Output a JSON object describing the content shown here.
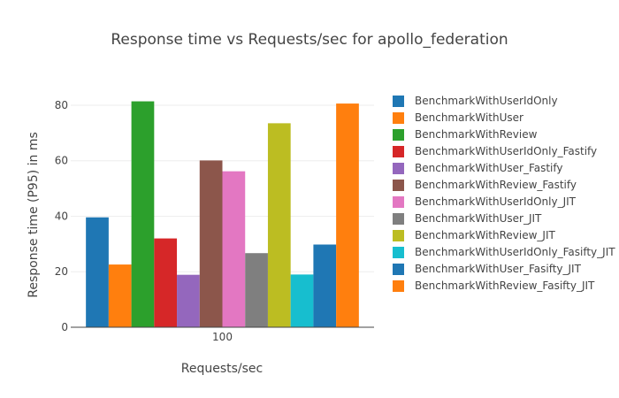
{
  "chart_data": {
    "type": "bar",
    "title": "Response time vs Requests/sec for apollo_federation",
    "xlabel": "Requests/sec",
    "ylabel": "Response time (P95) in ms",
    "categories": [
      "100"
    ],
    "ylim": [
      0,
      87
    ],
    "yticks": [
      0,
      20,
      40,
      60,
      80
    ],
    "grid": true,
    "legend_position": "right",
    "series": [
      {
        "name": "BenchmarkWithUserIdOnly",
        "values": [
          39.6
        ],
        "color": "#1f77b4"
      },
      {
        "name": "BenchmarkWithUser",
        "values": [
          22.6
        ],
        "color": "#ff7f0e"
      },
      {
        "name": "BenchmarkWithReview",
        "values": [
          81.4
        ],
        "color": "#2ca02c"
      },
      {
        "name": "BenchmarkWithUserIdOnly_Fastify",
        "values": [
          32.0
        ],
        "color": "#d62728"
      },
      {
        "name": "BenchmarkWithUser_Fastify",
        "values": [
          18.9
        ],
        "color": "#9467bd"
      },
      {
        "name": "BenchmarkWithReview_Fastify",
        "values": [
          60.1
        ],
        "color": "#8c564b"
      },
      {
        "name": "BenchmarkWithUserIdOnly_JIT",
        "values": [
          56.2
        ],
        "color": "#e377c2"
      },
      {
        "name": "BenchmarkWithUser_JIT",
        "values": [
          26.7
        ],
        "color": "#7f7f7f"
      },
      {
        "name": "BenchmarkWithReview_JIT",
        "values": [
          73.5
        ],
        "color": "#bcbd22"
      },
      {
        "name": "BenchmarkWithUserIdOnly_Fasifty_JIT",
        "values": [
          19.0
        ],
        "color": "#17becf"
      },
      {
        "name": "BenchmarkWithUser_Fasifty_JIT",
        "values": [
          29.8
        ],
        "color": "#1f77b4"
      },
      {
        "name": "BenchmarkWithReview_Fasifty_JIT",
        "values": [
          80.6
        ],
        "color": "#ff7f0e"
      }
    ]
  }
}
